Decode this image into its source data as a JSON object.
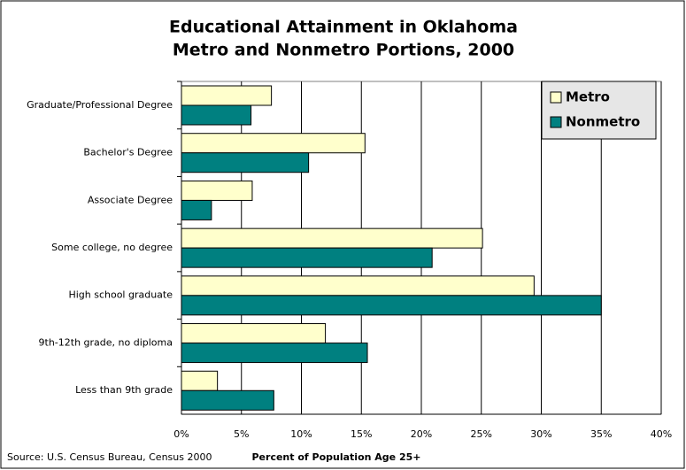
{
  "chart_data": {
    "type": "bar",
    "orientation": "horizontal",
    "title": "Educational Attainment in Oklahoma",
    "subtitle": "Metro and Nonmetro Portions, 2000",
    "categories": [
      "Graduate/Professional Degree",
      "Bachelor's Degree",
      "Associate Degree",
      "Some college, no degree",
      "High school graduate",
      "9th-12th grade, no diploma",
      "Less than 9th grade"
    ],
    "series": [
      {
        "name": "Metro",
        "color": "#ffffcc",
        "values": [
          7.5,
          15.3,
          5.9,
          25.1,
          29.4,
          12.0,
          3.0
        ]
      },
      {
        "name": "Nonmetro",
        "color": "#008080",
        "values": [
          5.8,
          10.6,
          2.5,
          20.9,
          35.0,
          15.5,
          7.7
        ]
      }
    ],
    "xlim": [
      0,
      40
    ],
    "xticks": [
      {
        "value": 0,
        "label": "0%"
      },
      {
        "value": 5,
        "label": "5%"
      },
      {
        "value": 10,
        "label": "10%"
      },
      {
        "value": 15,
        "label": "15%"
      },
      {
        "value": 20,
        "label": "20%"
      },
      {
        "value": 25,
        "label": "25%"
      },
      {
        "value": 30,
        "label": "30%"
      },
      {
        "value": 35,
        "label": "35%"
      },
      {
        "value": 40,
        "label": "40%"
      }
    ],
    "xlabel": "Percent of Population Age 25+",
    "source": "Source: U.S. Census Bureau, Census 2000",
    "grid": true,
    "legend": "top-right"
  }
}
